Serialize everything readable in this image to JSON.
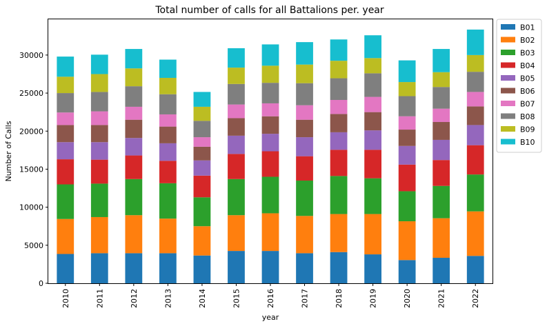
{
  "chart_data": {
    "type": "bar",
    "stacked": true,
    "title": "Total number of calls for all Battalions per. year",
    "xlabel": "year",
    "ylabel": "Number of Calls",
    "ylim": [
      0,
      34700
    ],
    "yticks": [
      0,
      5000,
      10000,
      15000,
      20000,
      25000,
      30000
    ],
    "categories": [
      "2010",
      "2011",
      "2012",
      "2013",
      "2014",
      "2015",
      "2016",
      "2017",
      "2018",
      "2019",
      "2020",
      "2021",
      "2022"
    ],
    "legend_position": "outside-top-right",
    "grid": false,
    "series": [
      {
        "name": "B01",
        "color": "#1f77b4",
        "values": [
          3850,
          3950,
          3950,
          3950,
          3650,
          4250,
          4250,
          3950,
          4100,
          3800,
          3050,
          3350,
          3600
        ]
      },
      {
        "name": "B02",
        "color": "#ff7f0e",
        "values": [
          4600,
          4750,
          5000,
          4550,
          3850,
          4700,
          4950,
          4900,
          5000,
          5300,
          5100,
          5200,
          5850
        ]
      },
      {
        "name": "B03",
        "color": "#2ca02c",
        "values": [
          4550,
          4400,
          4750,
          4650,
          3800,
          4750,
          4800,
          4650,
          5000,
          4700,
          3950,
          4250,
          4850
        ]
      },
      {
        "name": "B04",
        "color": "#d62728",
        "values": [
          3300,
          3150,
          3100,
          2950,
          2850,
          3300,
          3350,
          3200,
          3450,
          3750,
          3500,
          3400,
          3850
        ]
      },
      {
        "name": "B05",
        "color": "#9467bd",
        "values": [
          2250,
          2300,
          2300,
          2300,
          2000,
          2400,
          2300,
          2500,
          2300,
          2550,
          2450,
          2650,
          2650
        ]
      },
      {
        "name": "B06",
        "color": "#8c564b",
        "values": [
          2250,
          2250,
          2400,
          2200,
          1800,
          2300,
          2300,
          2300,
          2400,
          2400,
          2150,
          2350,
          2450
        ]
      },
      {
        "name": "B07",
        "color": "#e377c2",
        "values": [
          1650,
          1800,
          1700,
          1600,
          1250,
          1800,
          1700,
          1900,
          1850,
          2000,
          1750,
          1750,
          1900
        ]
      },
      {
        "name": "B08",
        "color": "#7f7f7f",
        "values": [
          2550,
          2550,
          2700,
          2650,
          2150,
          2700,
          2700,
          2900,
          2850,
          3100,
          2650,
          2850,
          2650
        ]
      },
      {
        "name": "B09",
        "color": "#bcbd22",
        "values": [
          2150,
          2350,
          2350,
          2150,
          1850,
          2150,
          2250,
          2450,
          2300,
          2000,
          1850,
          1950,
          2200
        ]
      },
      {
        "name": "B10",
        "color": "#17becf",
        "values": [
          2650,
          2550,
          2550,
          2400,
          1950,
          2550,
          2800,
          2950,
          2800,
          3000,
          2850,
          3050,
          3350
        ]
      }
    ]
  }
}
